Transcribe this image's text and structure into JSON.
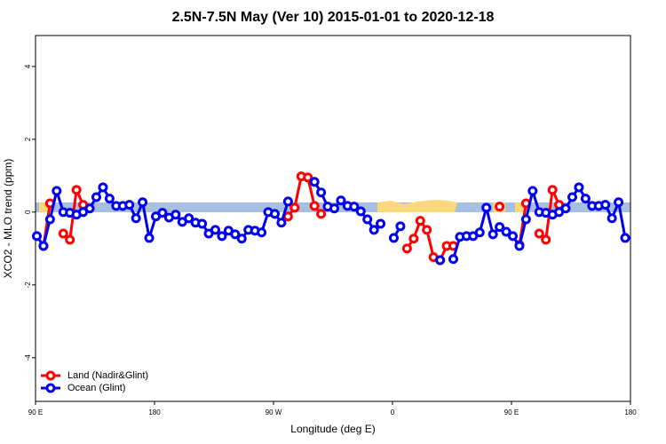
{
  "chart_data": {
    "type": "line",
    "title": "2.5N-7.5N May (Ver 10)   2015-01-01 to 2020-12-18",
    "xlabel": "Longitude (deg E)",
    "ylabel": "XCO2 - MLO trend (ppm)",
    "xlim": [
      90,
      540
    ],
    "ylim": [
      -5.2,
      4.85
    ],
    "xticks": [
      {
        "value": 90,
        "label": "90 E"
      },
      180,
      {
        "value": 270,
        "label": "90 W"
      },
      {
        "value": 360,
        "label": "0"
      },
      {
        "value": 450,
        "label": "90 E"
      },
      {
        "value": 540,
        "label": "180"
      }
    ],
    "yticks": [
      -4,
      -2,
      0,
      2,
      4
    ],
    "legend": "bottom-left",
    "x": [
      91,
      96,
      101,
      106,
      111,
      116,
      121,
      126,
      131,
      136,
      141,
      146,
      151,
      156,
      161,
      166,
      171,
      176,
      181,
      186,
      191,
      196,
      201,
      206,
      211,
      216,
      221,
      226,
      231,
      236,
      241,
      246,
      251,
      256,
      261,
      266,
      271,
      276,
      281,
      286,
      291,
      296,
      301,
      306,
      311,
      316,
      321,
      326,
      331,
      336,
      341,
      346,
      351,
      356,
      361,
      366,
      371,
      376,
      381,
      386,
      391,
      396,
      401,
      406,
      411,
      416,
      421,
      426,
      431,
      436,
      441,
      446,
      451,
      456,
      461,
      466,
      471,
      476,
      481,
      486,
      491,
      496,
      501,
      506,
      511,
      516,
      521,
      526,
      531,
      536
    ],
    "series": [
      {
        "name": "Land (Nadir&Glint)",
        "color": "#ff0000",
        "values": [
          null,
          -0.93,
          0.24,
          null,
          -0.59,
          -0.76,
          0.61,
          0.2,
          null,
          null,
          null,
          null,
          null,
          null,
          null,
          null,
          null,
          null,
          null,
          null,
          null,
          null,
          null,
          null,
          null,
          null,
          null,
          null,
          null,
          null,
          null,
          null,
          null,
          null,
          null,
          null,
          null,
          null,
          -0.12,
          0.12,
          0.98,
          0.95,
          0.17,
          -0.05,
          null,
          null,
          null,
          null,
          null,
          null,
          null,
          null,
          null,
          null,
          null,
          null,
          -1.0,
          -0.73,
          -0.24,
          -0.49,
          -1.24,
          -1.32,
          -0.93,
          -0.93,
          null,
          null,
          null,
          null,
          null,
          null,
          0.15,
          null,
          null,
          -0.9,
          0.24,
          null,
          -0.59,
          -0.76,
          0.61,
          0.2,
          null,
          null,
          null,
          null,
          null,
          null,
          null,
          null,
          null,
          null
        ]
      },
      {
        "name": "Ocean (Glint)",
        "color": "#0000ee",
        "values": [
          -0.66,
          -0.93,
          -0.2,
          0.58,
          0,
          -0.02,
          -0.07,
          0,
          0.1,
          0.41,
          0.68,
          0.37,
          0.17,
          0.17,
          0.2,
          -0.17,
          0.27,
          -0.71,
          -0.12,
          -0.02,
          -0.15,
          -0.07,
          -0.27,
          -0.17,
          -0.29,
          -0.32,
          -0.59,
          -0.49,
          -0.66,
          -0.51,
          -0.61,
          -0.73,
          -0.49,
          -0.51,
          -0.56,
          0,
          -0.05,
          -0.29,
          0.29,
          null,
          null,
          null,
          0.83,
          0.54,
          0.15,
          0.1,
          0.32,
          0.17,
          0.15,
          0.02,
          -0.2,
          -0.49,
          -0.32,
          null,
          -0.71,
          -0.39,
          null,
          null,
          null,
          null,
          null,
          -1.32,
          null,
          -1.29,
          -0.68,
          -0.66,
          -0.66,
          -0.56,
          0.12,
          -0.61,
          -0.41,
          -0.54,
          -0.66,
          -0.93,
          -0.2,
          0.58,
          0,
          -0.02,
          -0.07,
          0,
          0.1,
          0.41,
          0.68,
          0.37,
          0.17,
          0.17,
          0.2,
          -0.17,
          0.27,
          -0.71
        ]
      }
    ]
  }
}
